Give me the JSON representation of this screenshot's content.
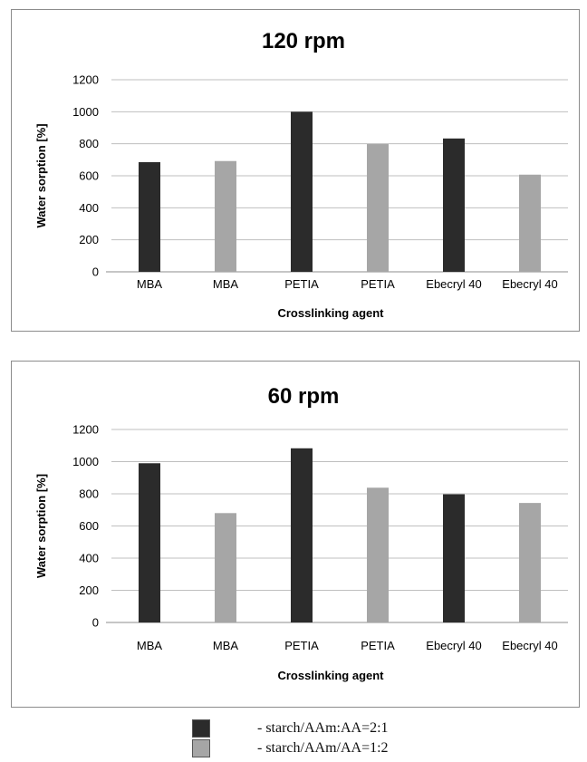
{
  "chart_data": [
    {
      "type": "bar",
      "title": "120 rpm",
      "xlabel": "Crosslinking agent",
      "ylabel": "Water sorption [%]",
      "ylim": [
        0,
        1200
      ],
      "yticks": [
        0,
        200,
        400,
        600,
        800,
        1000,
        1200
      ],
      "grid": true,
      "categories": [
        "MBA",
        "MBA",
        "PETIA",
        "PETIA",
        "Ebecryl 40",
        "Ebecryl 40"
      ],
      "values": [
        685,
        692,
        1000,
        798,
        833,
        607
      ],
      "bar_series": [
        "starch/AAm:AA=2:1",
        "starch/AAm/AA=1:2",
        "starch/AAm:AA=2:1",
        "starch/AAm/AA=1:2",
        "starch/AAm:AA=2:1",
        "starch/AAm/AA=1:2"
      ]
    },
    {
      "type": "bar",
      "title": "60 rpm",
      "xlabel": "Crosslinking agent",
      "ylabel": "Water sorption [%]",
      "ylim": [
        0,
        1200
      ],
      "yticks": [
        0,
        200,
        400,
        600,
        800,
        1000,
        1200
      ],
      "grid": true,
      "categories": [
        "MBA",
        "MBA",
        "PETIA",
        "PETIA",
        "Ebecryl 40",
        "Ebecryl 40"
      ],
      "values": [
        990,
        680,
        1083,
        838,
        797,
        743
      ],
      "bar_series": [
        "starch/AAm:AA=2:1",
        "starch/AAm/AA=1:2",
        "starch/AAm:AA=2:1",
        "starch/AAm/AA=1:2",
        "starch/AAm:AA=2:1",
        "starch/AAm/AA=1:2"
      ]
    }
  ],
  "legend": {
    "placement": "bottom-center",
    "items": [
      {
        "label": "- starch/AAm:AA=2:1",
        "series": "starch/AAm:AA=2:1",
        "color": "#2b2b2b"
      },
      {
        "label": "- starch/AAm/AA=1:2",
        "series": "starch/AAm/AA=1:2",
        "color": "#a6a6a6"
      }
    ]
  },
  "colors": {
    "starch/AAm:AA=2:1": "#2b2b2b",
    "starch/AAm/AA=1:2": "#a6a6a6",
    "grid": "#bfbfbf",
    "axis": "#8c8c8c",
    "panel_border": "#8c8c8c"
  }
}
